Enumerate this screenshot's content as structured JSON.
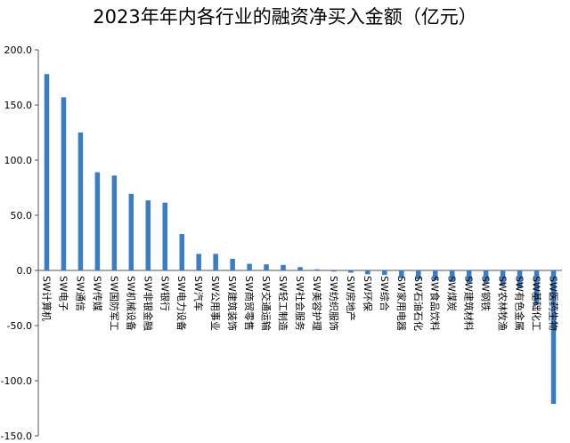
{
  "chart_data": {
    "type": "bar",
    "title": "2023年年内各行业的融资净买入金额（亿元）",
    "xlabel": "",
    "ylabel": "",
    "ylim": [
      -150,
      200
    ],
    "yticks": [
      "200.0",
      "150.0",
      "100.0",
      "50.0",
      "0.0",
      "-50.0",
      "-100.0",
      "-150.0"
    ],
    "grid": false,
    "legend": "none",
    "bar_color": "#3B7DC4",
    "categories": [
      "SW计算机",
      "SW电子",
      "SW通信",
      "SW传媒",
      "SW国防军工",
      "SW机械设备",
      "SW非银金融",
      "SW银行",
      "SW电力设备",
      "SW汽车",
      "SW公用事业",
      "SW建筑装饰",
      "SW商贸零售",
      "SW交通运输",
      "SW轻工制造",
      "SW社会服务",
      "SW美容护理",
      "SW纺织服饰",
      "SW房地产",
      "SW环保",
      "SW综合",
      "SW家用电器",
      "SW石油石化",
      "SW食品饮料",
      "SW煤炭",
      "SW建筑材料",
      "SW钢铁",
      "SW农林牧渔",
      "SW有色金属",
      "SW基础化工",
      "SW医药生物"
    ],
    "values": [
      178,
      157,
      125,
      89,
      86,
      69.5,
      63.5,
      61.5,
      33,
      15,
      15,
      10.5,
      6,
      5.5,
      5,
      3,
      1,
      -1,
      -2,
      -3.5,
      -4,
      -7,
      -8,
      -9,
      -10.5,
      -11.5,
      -12,
      -13.5,
      -16,
      -31,
      -121
    ]
  }
}
